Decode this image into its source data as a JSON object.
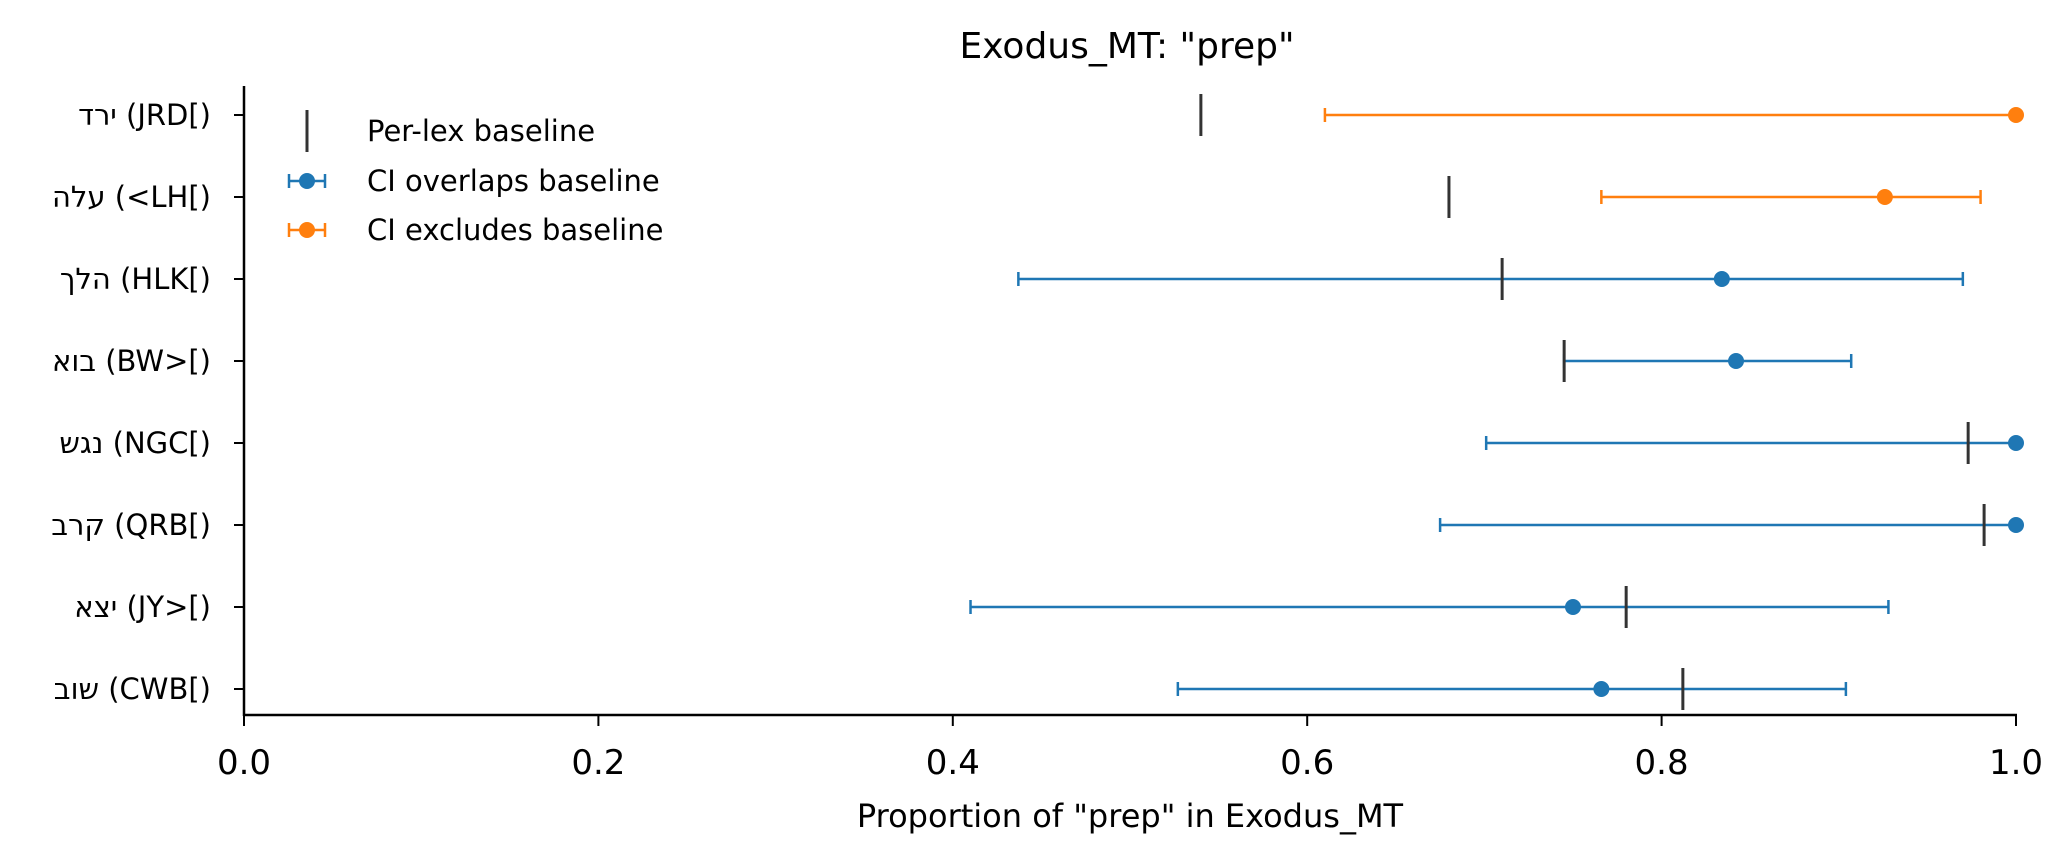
{
  "chart_data": {
    "type": "errorbar",
    "title": "Exodus_MT: \"prep\"",
    "xlabel": "Proportion of \"prep\" in Exodus_MT",
    "ylabel": "",
    "xlim": [
      0.0,
      1.0
    ],
    "xticks": [
      "0.0",
      "0.2",
      "0.4",
      "0.6",
      "0.8",
      "1.0"
    ],
    "grid": false,
    "legend_position": "top-left",
    "colors": {
      "overlaps": "#1f77b4",
      "excludes": "#ff7f0e",
      "baseline": "#333333"
    },
    "legend": [
      {
        "label": "Per-lex baseline",
        "marker": "baseline"
      },
      {
        "label": "CI overlaps baseline",
        "marker": "overlaps"
      },
      {
        "label": "CI excludes baseline",
        "marker": "excludes"
      }
    ],
    "rows": [
      {
        "label": "ירד (JRD[)",
        "estimate": 1.0,
        "ci_low": 0.61,
        "ci_high": 1.0,
        "baseline": 0.54,
        "group": "excludes"
      },
      {
        "label": "עלה (<LH[)",
        "estimate": 0.926,
        "ci_low": 0.766,
        "ci_high": 0.98,
        "baseline": 0.68,
        "group": "excludes"
      },
      {
        "label": "הלך (HLK[)",
        "estimate": 0.834,
        "ci_low": 0.437,
        "ci_high": 0.97,
        "baseline": 0.71,
        "group": "overlaps"
      },
      {
        "label": "בוא (BW>[)",
        "estimate": 0.842,
        "ci_low": 0.745,
        "ci_high": 0.907,
        "baseline": 0.745,
        "group": "overlaps"
      },
      {
        "label": "נגש (NGC[)",
        "estimate": 1.0,
        "ci_low": 0.701,
        "ci_high": 1.0,
        "baseline": 0.973,
        "group": "overlaps"
      },
      {
        "label": "קרב (QRB[)",
        "estimate": 1.0,
        "ci_low": 0.675,
        "ci_high": 1.0,
        "baseline": 0.982,
        "group": "overlaps"
      },
      {
        "label": "יצא (JY>[)",
        "estimate": 0.75,
        "ci_low": 0.41,
        "ci_high": 0.928,
        "baseline": 0.78,
        "group": "overlaps"
      },
      {
        "label": "שוב (CWB[)",
        "estimate": 0.766,
        "ci_low": 0.527,
        "ci_high": 0.904,
        "baseline": 0.812,
        "group": "overlaps"
      }
    ]
  }
}
